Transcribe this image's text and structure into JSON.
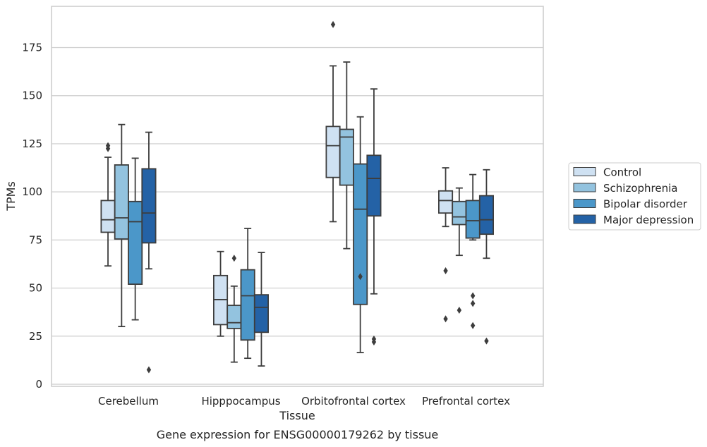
{
  "chart_data": {
    "type": "box",
    "title": "",
    "caption": "Gene expression for ENSG00000179262 by tissue",
    "xlabel": "Tissue",
    "ylabel": "TPMs",
    "ylim": [
      -1,
      196
    ],
    "yticks": [
      0,
      25,
      50,
      75,
      100,
      125,
      150,
      175
    ],
    "grid": "horizontal",
    "legend_position": "right",
    "categories": [
      "Cerebellum",
      "Hipppocampus",
      "Orbitofrontal cortex",
      "Prefrontal cortex"
    ],
    "series": [
      {
        "name": "Control",
        "color": "#cfe1f2",
        "boxes": [
          {
            "whislo": 61.5,
            "q1": 79,
            "med": 85.5,
            "q3": 95.5,
            "whishi": 118,
            "fliers": [
              122.5,
              124
            ]
          },
          {
            "whislo": 25,
            "q1": 31,
            "med": 44,
            "q3": 56.5,
            "whishi": 69,
            "fliers": []
          },
          {
            "whislo": 84.5,
            "q1": 107.5,
            "med": 124,
            "q3": 134,
            "whishi": 165.5,
            "fliers": [
              187
            ]
          },
          {
            "whislo": 82,
            "q1": 89,
            "med": 95.5,
            "q3": 100.5,
            "whishi": 112.5,
            "fliers": [
              59,
              34
            ]
          }
        ]
      },
      {
        "name": "Schizophrenia",
        "color": "#93c3df",
        "boxes": [
          {
            "whislo": 30,
            "q1": 75.5,
            "med": 86.5,
            "q3": 114,
            "whishi": 135,
            "fliers": []
          },
          {
            "whislo": 11.5,
            "q1": 29,
            "med": 32,
            "q3": 41,
            "whishi": 51,
            "fliers": [
              65.5
            ]
          },
          {
            "whislo": 70.5,
            "q1": 103.5,
            "med": 128.5,
            "q3": 132.5,
            "whishi": 167.5,
            "fliers": []
          },
          {
            "whislo": 67,
            "q1": 83,
            "med": 87,
            "q3": 95,
            "whishi": 102,
            "fliers": [
              38.5
            ]
          }
        ]
      },
      {
        "name": "Bipolar disorder",
        "color": "#4b97c9",
        "boxes": [
          {
            "whislo": 33.5,
            "q1": 52,
            "med": 84.5,
            "q3": 95,
            "whishi": 117.5,
            "fliers": []
          },
          {
            "whislo": 13.5,
            "q1": 23,
            "med": 46,
            "q3": 59.5,
            "whishi": 81,
            "fliers": []
          },
          {
            "whislo": 16.5,
            "q1": 41.5,
            "med": 91,
            "q3": 114.5,
            "whishi": 139,
            "fliers": [
              56
            ]
          },
          {
            "whislo": 75,
            "q1": 76,
            "med": 85,
            "q3": 95.5,
            "whishi": 109,
            "fliers": [
              46,
              42,
              30.5
            ]
          }
        ]
      },
      {
        "name": "Major depression",
        "color": "#2462a6",
        "boxes": [
          {
            "whislo": 60,
            "q1": 73.5,
            "med": 89,
            "q3": 112,
            "whishi": 131,
            "fliers": [
              7.5
            ]
          },
          {
            "whislo": 9.5,
            "q1": 27,
            "med": 40,
            "q3": 46.5,
            "whishi": 68.5,
            "fliers": []
          },
          {
            "whislo": 47,
            "q1": 87.5,
            "med": 107,
            "q3": 119,
            "whishi": 153.5,
            "fliers": [
              23.5,
              22
            ]
          },
          {
            "whislo": 65.5,
            "q1": 78,
            "med": 85.5,
            "q3": 98,
            "whishi": 111.5,
            "fliers": [
              22.5
            ]
          }
        ]
      }
    ]
  }
}
